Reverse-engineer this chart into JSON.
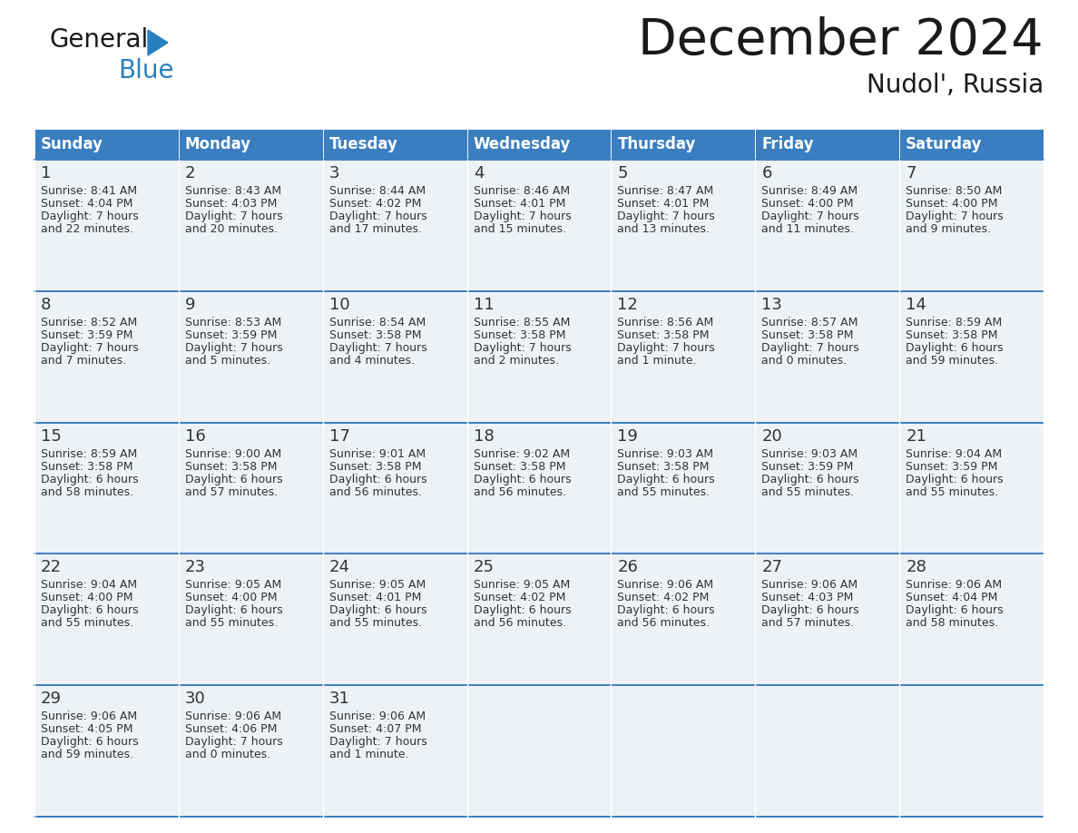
{
  "title": "December 2024",
  "subtitle": "Nudol', Russia",
  "header_color": "#3a7ebf",
  "header_text_color": "#ffffff",
  "cell_bg_color": "#eef2f7",
  "day_headers": [
    "Sunday",
    "Monday",
    "Tuesday",
    "Wednesday",
    "Thursday",
    "Friday",
    "Saturday"
  ],
  "days": [
    {
      "day": 1,
      "col": 0,
      "row": 0,
      "sunrise": "8:41 AM",
      "sunset": "4:04 PM",
      "daylight": "7 hours and 22 minutes."
    },
    {
      "day": 2,
      "col": 1,
      "row": 0,
      "sunrise": "8:43 AM",
      "sunset": "4:03 PM",
      "daylight": "7 hours and 20 minutes."
    },
    {
      "day": 3,
      "col": 2,
      "row": 0,
      "sunrise": "8:44 AM",
      "sunset": "4:02 PM",
      "daylight": "7 hours and 17 minutes."
    },
    {
      "day": 4,
      "col": 3,
      "row": 0,
      "sunrise": "8:46 AM",
      "sunset": "4:01 PM",
      "daylight": "7 hours and 15 minutes."
    },
    {
      "day": 5,
      "col": 4,
      "row": 0,
      "sunrise": "8:47 AM",
      "sunset": "4:01 PM",
      "daylight": "7 hours and 13 minutes."
    },
    {
      "day": 6,
      "col": 5,
      "row": 0,
      "sunrise": "8:49 AM",
      "sunset": "4:00 PM",
      "daylight": "7 hours and 11 minutes."
    },
    {
      "day": 7,
      "col": 6,
      "row": 0,
      "sunrise": "8:50 AM",
      "sunset": "4:00 PM",
      "daylight": "7 hours and 9 minutes."
    },
    {
      "day": 8,
      "col": 0,
      "row": 1,
      "sunrise": "8:52 AM",
      "sunset": "3:59 PM",
      "daylight": "7 hours and 7 minutes."
    },
    {
      "day": 9,
      "col": 1,
      "row": 1,
      "sunrise": "8:53 AM",
      "sunset": "3:59 PM",
      "daylight": "7 hours and 5 minutes."
    },
    {
      "day": 10,
      "col": 2,
      "row": 1,
      "sunrise": "8:54 AM",
      "sunset": "3:58 PM",
      "daylight": "7 hours and 4 minutes."
    },
    {
      "day": 11,
      "col": 3,
      "row": 1,
      "sunrise": "8:55 AM",
      "sunset": "3:58 PM",
      "daylight": "7 hours and 2 minutes."
    },
    {
      "day": 12,
      "col": 4,
      "row": 1,
      "sunrise": "8:56 AM",
      "sunset": "3:58 PM",
      "daylight": "7 hours and 1 minute."
    },
    {
      "day": 13,
      "col": 5,
      "row": 1,
      "sunrise": "8:57 AM",
      "sunset": "3:58 PM",
      "daylight": "7 hours and 0 minutes."
    },
    {
      "day": 14,
      "col": 6,
      "row": 1,
      "sunrise": "8:59 AM",
      "sunset": "3:58 PM",
      "daylight": "6 hours and 59 minutes."
    },
    {
      "day": 15,
      "col": 0,
      "row": 2,
      "sunrise": "8:59 AM",
      "sunset": "3:58 PM",
      "daylight": "6 hours and 58 minutes."
    },
    {
      "day": 16,
      "col": 1,
      "row": 2,
      "sunrise": "9:00 AM",
      "sunset": "3:58 PM",
      "daylight": "6 hours and 57 minutes."
    },
    {
      "day": 17,
      "col": 2,
      "row": 2,
      "sunrise": "9:01 AM",
      "sunset": "3:58 PM",
      "daylight": "6 hours and 56 minutes."
    },
    {
      "day": 18,
      "col": 3,
      "row": 2,
      "sunrise": "9:02 AM",
      "sunset": "3:58 PM",
      "daylight": "6 hours and 56 minutes."
    },
    {
      "day": 19,
      "col": 4,
      "row": 2,
      "sunrise": "9:03 AM",
      "sunset": "3:58 PM",
      "daylight": "6 hours and 55 minutes."
    },
    {
      "day": 20,
      "col": 5,
      "row": 2,
      "sunrise": "9:03 AM",
      "sunset": "3:59 PM",
      "daylight": "6 hours and 55 minutes."
    },
    {
      "day": 21,
      "col": 6,
      "row": 2,
      "sunrise": "9:04 AM",
      "sunset": "3:59 PM",
      "daylight": "6 hours and 55 minutes."
    },
    {
      "day": 22,
      "col": 0,
      "row": 3,
      "sunrise": "9:04 AM",
      "sunset": "4:00 PM",
      "daylight": "6 hours and 55 minutes."
    },
    {
      "day": 23,
      "col": 1,
      "row": 3,
      "sunrise": "9:05 AM",
      "sunset": "4:00 PM",
      "daylight": "6 hours and 55 minutes."
    },
    {
      "day": 24,
      "col": 2,
      "row": 3,
      "sunrise": "9:05 AM",
      "sunset": "4:01 PM",
      "daylight": "6 hours and 55 minutes."
    },
    {
      "day": 25,
      "col": 3,
      "row": 3,
      "sunrise": "9:05 AM",
      "sunset": "4:02 PM",
      "daylight": "6 hours and 56 minutes."
    },
    {
      "day": 26,
      "col": 4,
      "row": 3,
      "sunrise": "9:06 AM",
      "sunset": "4:02 PM",
      "daylight": "6 hours and 56 minutes."
    },
    {
      "day": 27,
      "col": 5,
      "row": 3,
      "sunrise": "9:06 AM",
      "sunset": "4:03 PM",
      "daylight": "6 hours and 57 minutes."
    },
    {
      "day": 28,
      "col": 6,
      "row": 3,
      "sunrise": "9:06 AM",
      "sunset": "4:04 PM",
      "daylight": "6 hours and 58 minutes."
    },
    {
      "day": 29,
      "col": 0,
      "row": 4,
      "sunrise": "9:06 AM",
      "sunset": "4:05 PM",
      "daylight": "6 hours and 59 minutes."
    },
    {
      "day": 30,
      "col": 1,
      "row": 4,
      "sunrise": "9:06 AM",
      "sunset": "4:06 PM",
      "daylight": "7 hours and 0 minutes."
    },
    {
      "day": 31,
      "col": 2,
      "row": 4,
      "sunrise": "9:06 AM",
      "sunset": "4:07 PM",
      "daylight": "7 hours and 1 minute."
    }
  ],
  "text_color": "#1a1a1a",
  "line_color": "#3a7ebf",
  "cell_text_color": "#333333",
  "num_rows": 5,
  "title_fontsize": 40,
  "subtitle_fontsize": 20,
  "header_fontsize": 12,
  "day_num_fontsize": 13,
  "cell_fontsize": 9
}
